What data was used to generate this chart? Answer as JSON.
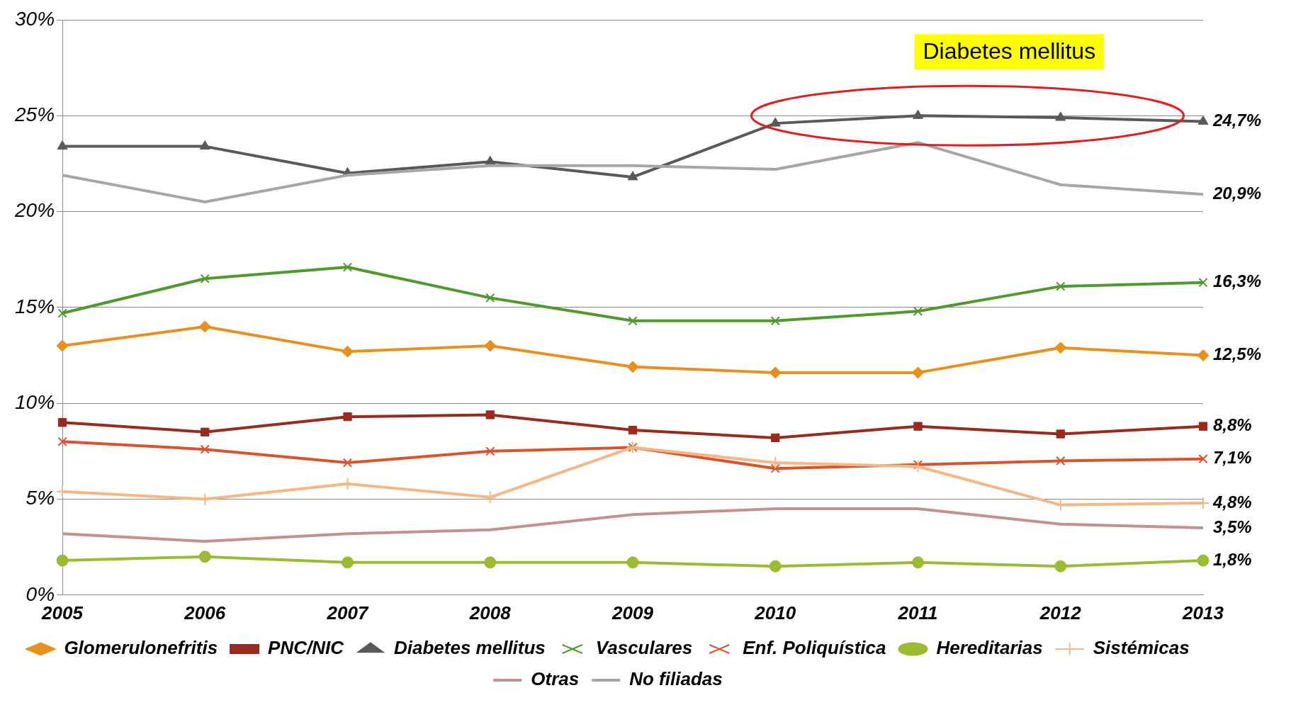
{
  "chart_data": {
    "type": "line",
    "categories": [
      "2005",
      "2006",
      "2007",
      "2008",
      "2009",
      "2010",
      "2011",
      "2012",
      "2013"
    ],
    "series": [
      {
        "name": "Glomerulonefritis",
        "color": "#e8901e",
        "marker": "diamond",
        "values": [
          13.0,
          14.0,
          12.7,
          13.0,
          11.9,
          11.6,
          11.6,
          12.9,
          12.5
        ],
        "value_labels": [
          null,
          null,
          null,
          null,
          null,
          null,
          null,
          null,
          "12,5%"
        ]
      },
      {
        "name": "PNC/NIC",
        "color": "#9b2a1e",
        "marker": "square",
        "values": [
          9.0,
          8.5,
          9.3,
          9.4,
          8.6,
          8.2,
          8.8,
          8.4,
          8.8
        ],
        "value_labels": [
          null,
          null,
          null,
          null,
          null,
          null,
          null,
          null,
          "8,8%"
        ]
      },
      {
        "name": "Diabetes mellitus",
        "color": "#595959",
        "marker": "triangle",
        "values": [
          23.4,
          23.4,
          22.0,
          22.6,
          21.8,
          24.6,
          25.0,
          24.9,
          24.7
        ],
        "value_labels": [
          null,
          null,
          null,
          null,
          null,
          null,
          null,
          null,
          "24,7%"
        ]
      },
      {
        "name": "Vasculares",
        "color": "#4f9a2f",
        "marker": "cross",
        "values": [
          14.7,
          16.5,
          17.1,
          15.5,
          14.3,
          14.3,
          14.8,
          16.1,
          16.3
        ],
        "value_labels": [
          null,
          null,
          null,
          null,
          null,
          null,
          null,
          null,
          "16,3%"
        ]
      },
      {
        "name": "Enf. Poliquística",
        "color": "#d9542e",
        "marker": "cross",
        "values": [
          8.0,
          7.6,
          6.9,
          7.5,
          7.7,
          6.6,
          6.8,
          7.0,
          7.1
        ],
        "value_labels": [
          null,
          null,
          null,
          null,
          null,
          null,
          null,
          null,
          "7,1%"
        ]
      },
      {
        "name": "Hereditarias",
        "color": "#9bbb32",
        "marker": "circle",
        "values": [
          1.8,
          2.0,
          1.7,
          1.7,
          1.7,
          1.5,
          1.7,
          1.5,
          1.8
        ],
        "value_labels": [
          null,
          null,
          null,
          null,
          null,
          null,
          null,
          null,
          "1,8%"
        ]
      },
      {
        "name": "Sistémicas",
        "color": "#f5b783",
        "marker": "plus",
        "values": [
          5.4,
          5.0,
          5.8,
          5.1,
          7.7,
          6.9,
          6.7,
          4.7,
          4.8
        ],
        "value_labels": [
          null,
          null,
          null,
          null,
          null,
          null,
          null,
          null,
          "4,8%"
        ]
      },
      {
        "name": "Otras",
        "color": "#c49193",
        "marker": "none",
        "values": [
          3.2,
          2.8,
          3.2,
          3.4,
          4.2,
          4.5,
          4.5,
          3.7,
          3.5
        ],
        "value_labels": [
          null,
          null,
          null,
          null,
          null,
          null,
          null,
          null,
          "3,5%"
        ]
      },
      {
        "name": "No filiadas",
        "color": "#a6a6a6",
        "marker": "none",
        "values": [
          21.9,
          20.5,
          21.9,
          22.4,
          22.4,
          22.2,
          23.6,
          21.4,
          20.9
        ],
        "value_labels": [
          null,
          null,
          null,
          null,
          null,
          null,
          null,
          null,
          "20,9%"
        ]
      }
    ],
    "ylim": [
      0,
      30
    ],
    "yticks": [
      {
        "value": 0,
        "label": "0%"
      },
      {
        "value": 5,
        "label": "5%"
      },
      {
        "value": 10,
        "label": "10%"
      },
      {
        "value": 15,
        "label": "15%"
      },
      {
        "value": 20,
        "label": "20%"
      },
      {
        "value": 25,
        "label": "25%"
      },
      {
        "value": 30,
        "label": "30%"
      }
    ],
    "grid": "y",
    "legend": "bottom",
    "annotations": [
      {
        "text": "Diabetes mellitus",
        "x": "2011",
        "y": 25
      }
    ]
  }
}
